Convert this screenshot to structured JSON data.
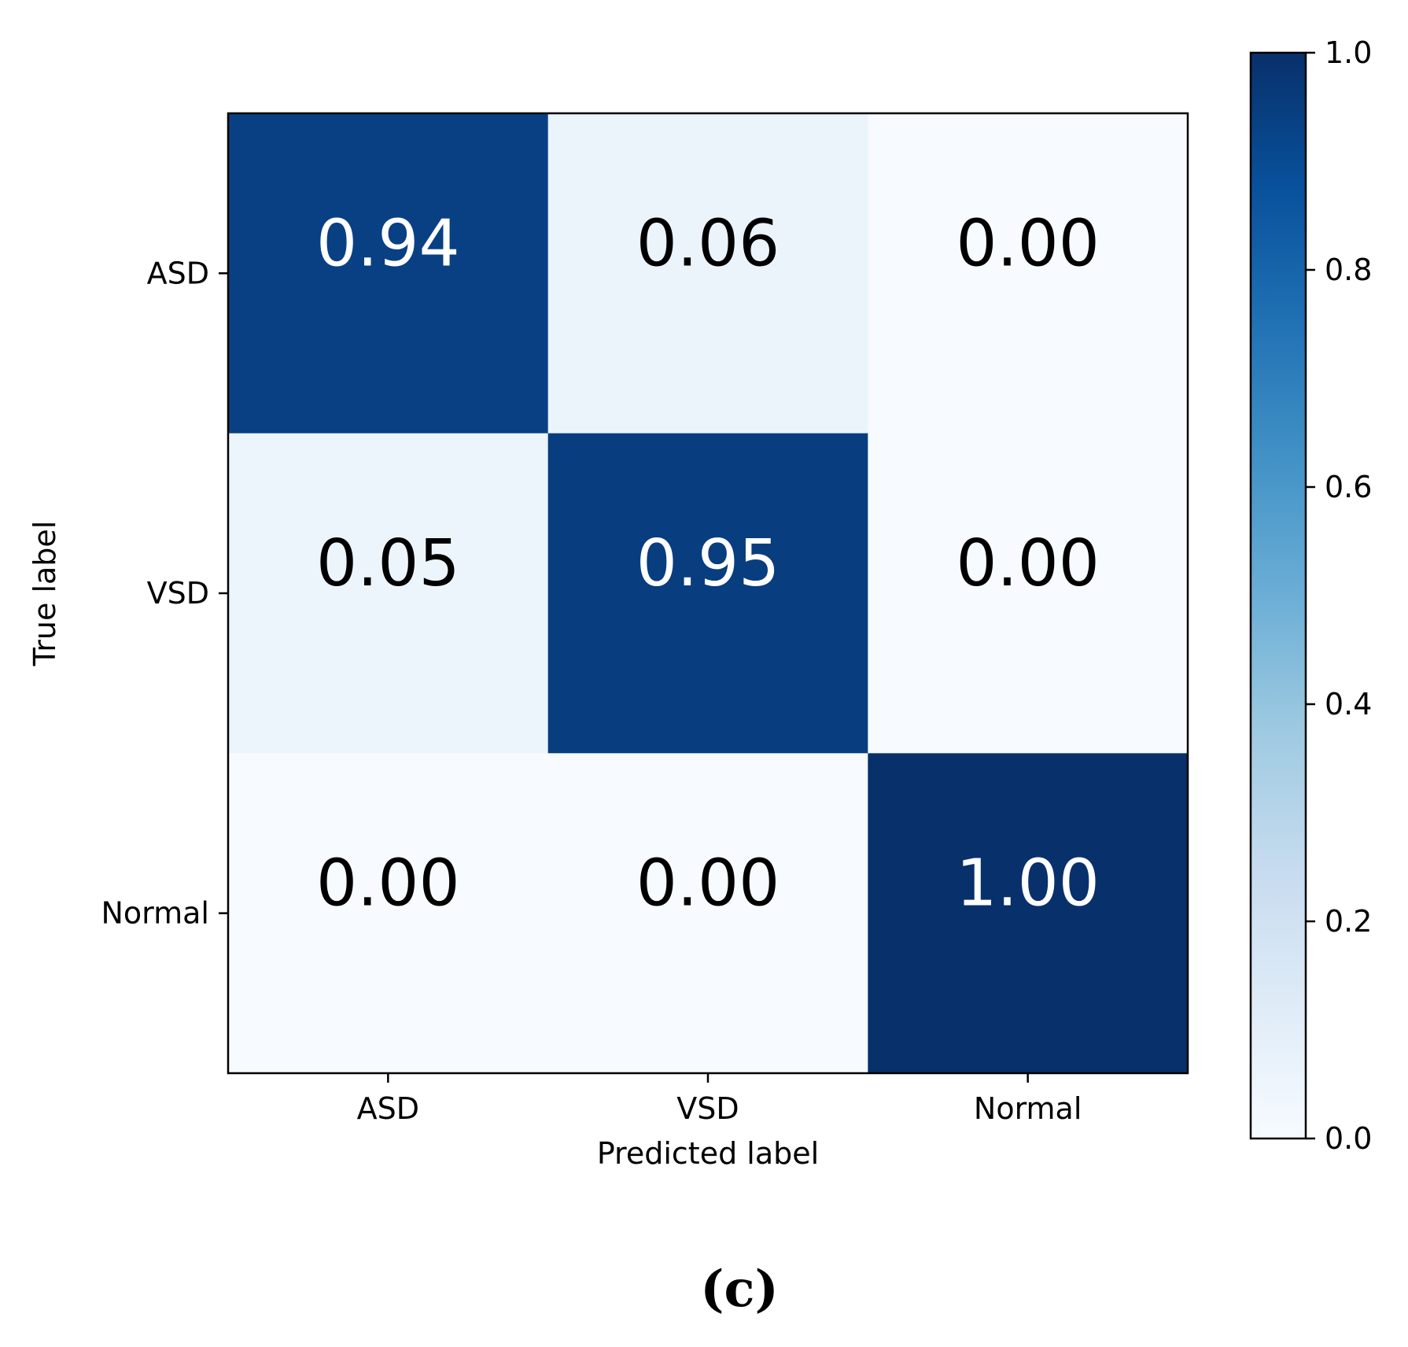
{
  "chart_data": {
    "type": "heatmap",
    "subtype": "confusion_matrix",
    "row_labels": [
      "ASD",
      "VSD",
      "Normal"
    ],
    "col_labels": [
      "ASD",
      "VSD",
      "Normal"
    ],
    "values": [
      [
        0.94,
        0.06,
        0.0
      ],
      [
        0.05,
        0.95,
        0.0
      ],
      [
        0.0,
        0.0,
        1.0
      ]
    ],
    "value_labels": [
      [
        "0.94",
        "0.06",
        "0.00"
      ],
      [
        "0.05",
        "0.95",
        "0.00"
      ],
      [
        "0.00",
        "0.00",
        "1.00"
      ]
    ],
    "xlabel": "Predicted label",
    "ylabel": "True label",
    "colormap": "Blues",
    "colormap_stops": [
      "#f7fbff",
      "#deebf7",
      "#c6dbef",
      "#9ecae1",
      "#6baed6",
      "#4292c6",
      "#2171b5",
      "#08519c",
      "#08306b"
    ],
    "colorbar": {
      "range": [
        0.0,
        1.0
      ],
      "ticks": [
        0.0,
        0.2,
        0.4,
        0.6,
        0.8,
        1.0
      ],
      "tick_labels": [
        "0.0",
        "0.2",
        "0.4",
        "0.6",
        "0.8",
        "1.0"
      ]
    }
  },
  "panel_label": "(c)"
}
